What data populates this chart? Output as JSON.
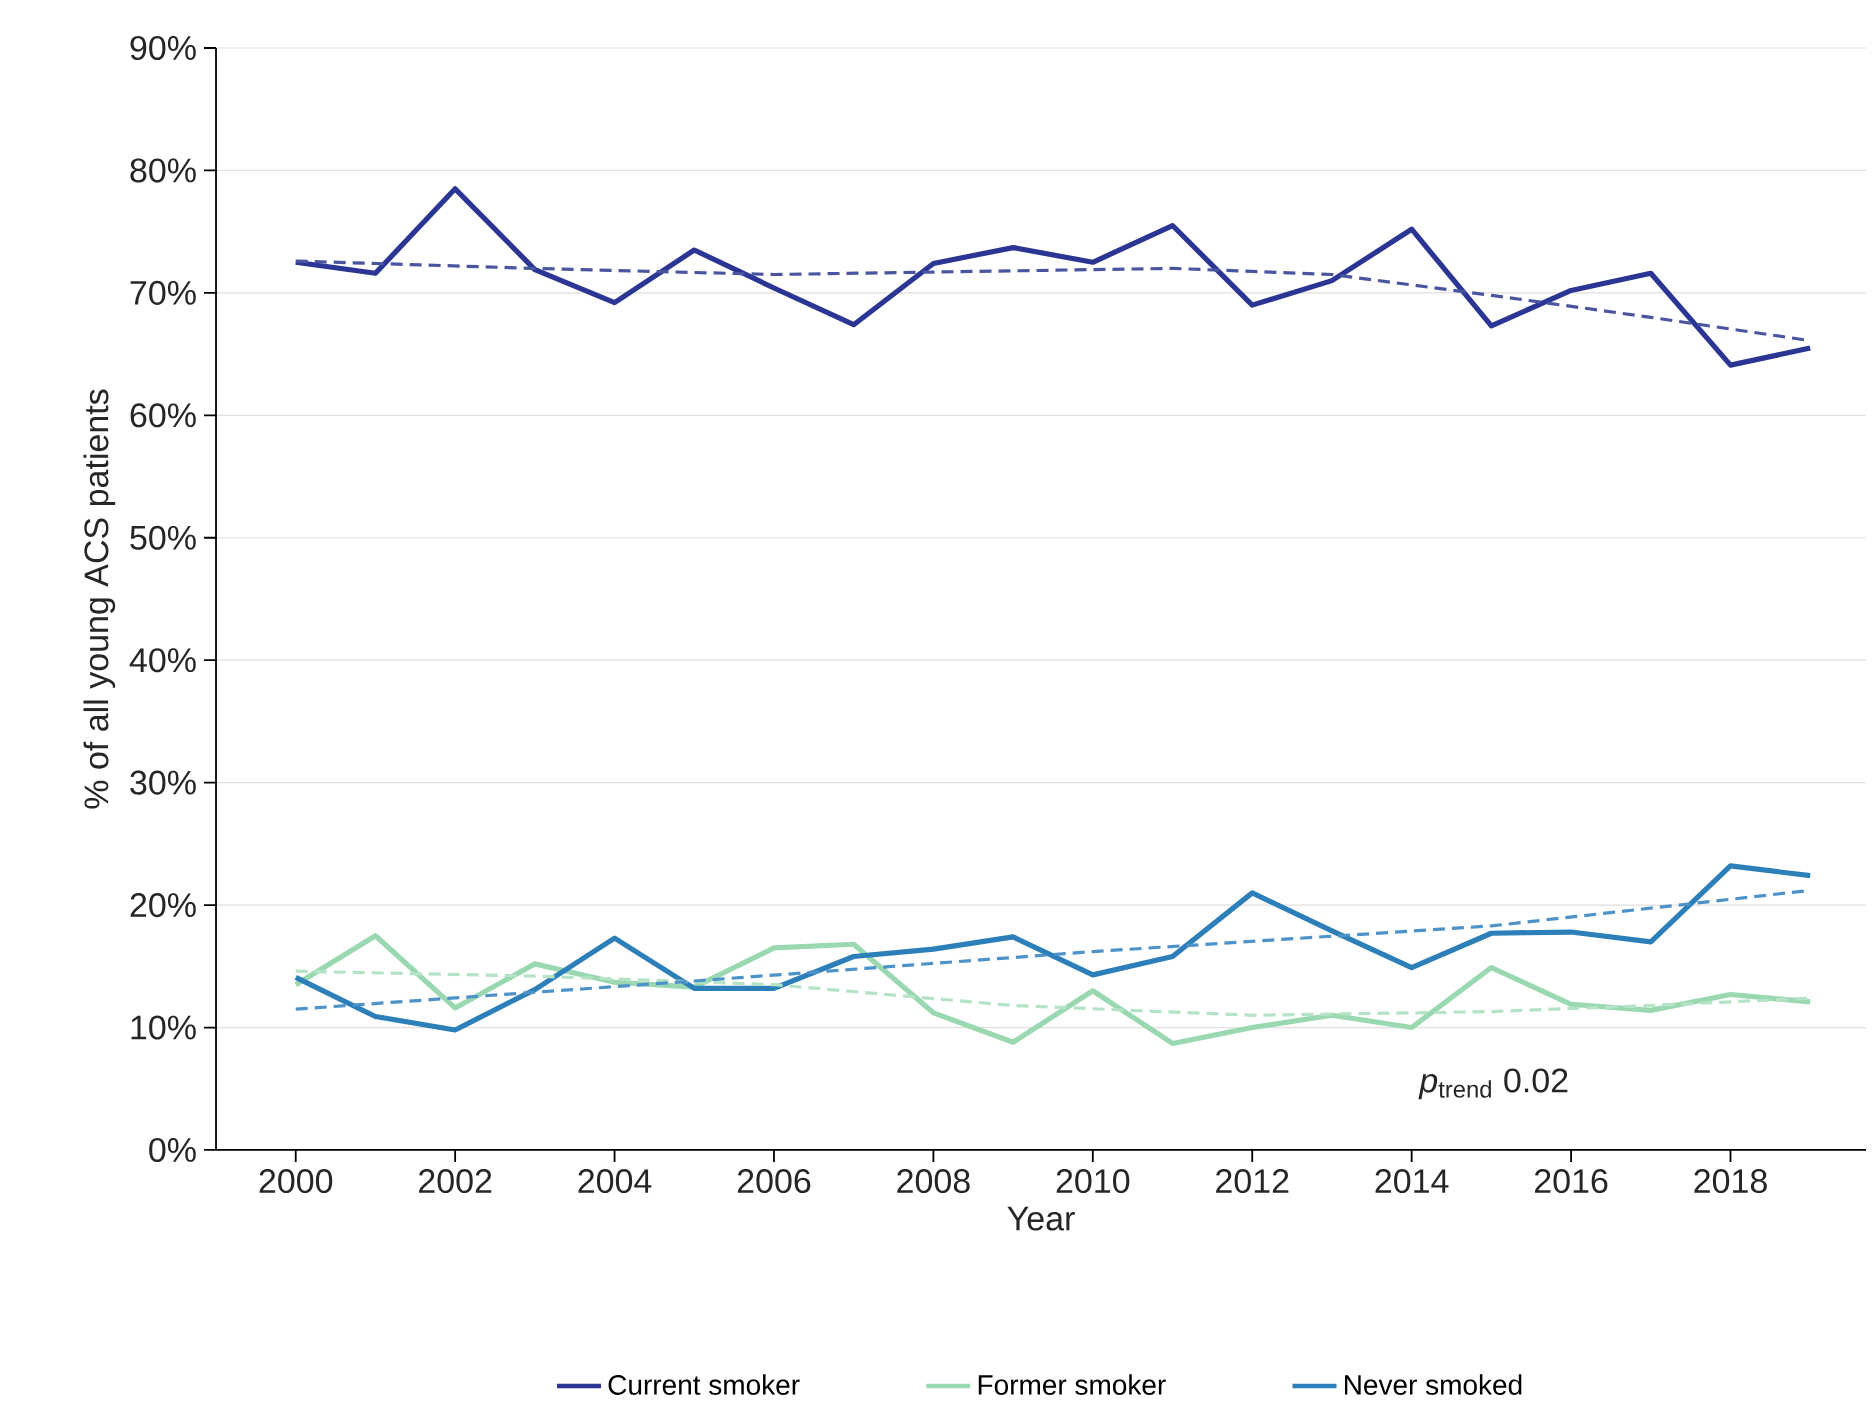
{
  "chart_data": {
    "type": "line",
    "xlabel": "Year",
    "ylabel": "% of all young ACS patients",
    "x": [
      2000,
      2001,
      2002,
      2003,
      2004,
      2005,
      2006,
      2007,
      2008,
      2009,
      2010,
      2011,
      2012,
      2013,
      2014,
      2015,
      2016,
      2017,
      2018,
      2019
    ],
    "series": [
      {
        "name": "Current smoker",
        "color": "#2b3593",
        "values": [
          72.5,
          71.6,
          78.5,
          71.9,
          69.2,
          73.5,
          70.4,
          67.4,
          72.4,
          73.7,
          72.5,
          75.5,
          69.0,
          71.0,
          75.2,
          67.3,
          70.2,
          71.6,
          64.1,
          65.5
        ]
      },
      {
        "name": "Former smoker",
        "color": "#99d8b0",
        "values": [
          13.5,
          17.5,
          11.6,
          15.2,
          13.7,
          13.3,
          16.5,
          16.8,
          11.2,
          8.8,
          13.0,
          8.7,
          10.0,
          11.0,
          10.0,
          14.9,
          11.9,
          11.4,
          12.7,
          12.1
        ]
      },
      {
        "name": "Never smoked",
        "color": "#2c7fb8",
        "values": [
          14.1,
          10.9,
          9.8,
          13.1,
          17.3,
          13.2,
          13.2,
          15.8,
          16.4,
          17.4,
          14.3,
          15.8,
          21.0,
          17.9,
          14.9,
          17.7,
          17.8,
          17.0,
          23.2,
          22.4
        ]
      },
      {
        "type": "line",
        "line_style": "dashed",
        "color": "#4a55a0",
        "x": [
          2000,
          2003,
          2006,
          2009,
          2011,
          2013,
          2015,
          2017,
          2019
        ],
        "values": [
          72.6,
          72.0,
          71.5,
          71.8,
          72.0,
          71.5,
          69.8,
          68.0,
          66.1
        ]
      },
      {
        "type": "line",
        "line_style": "dashed",
        "color": "#b5e3c5",
        "x": [
          2000,
          2003,
          2006,
          2009,
          2012,
          2015,
          2017,
          2019
        ],
        "values": [
          14.6,
          14.2,
          13.5,
          11.8,
          11.0,
          11.3,
          11.8,
          12.4
        ]
      },
      {
        "type": "line",
        "line_style": "dashed",
        "color": "#4d92c8",
        "x": [
          2000,
          2005,
          2010,
          2015,
          2019
        ],
        "values": [
          11.5,
          13.8,
          16.2,
          18.3,
          21.2
        ]
      }
    ],
    "xlim": [
      1999,
      2019.7
    ],
    "xticks": [
      2000,
      2002,
      2004,
      2006,
      2008,
      2010,
      2012,
      2014,
      2016,
      2018
    ],
    "ylim": [
      0,
      90
    ],
    "yticks": [
      {
        "value": 0,
        "label": "0%"
      },
      {
        "value": 10,
        "label": "10%"
      },
      {
        "value": 20,
        "label": "20%"
      },
      {
        "value": 30,
        "label": "30%"
      },
      {
        "value": 40,
        "label": "40%"
      },
      {
        "value": 50,
        "label": "50%"
      },
      {
        "value": 60,
        "label": "60%"
      },
      {
        "value": 70,
        "label": "70%"
      },
      {
        "value": 80,
        "label": "80%"
      },
      {
        "value": 90,
        "label": "90%"
      }
    ],
    "grid": "y",
    "legend": "bottom",
    "annotations": [
      "*p*$_{trend}$ 0.02"
    ]
  }
}
